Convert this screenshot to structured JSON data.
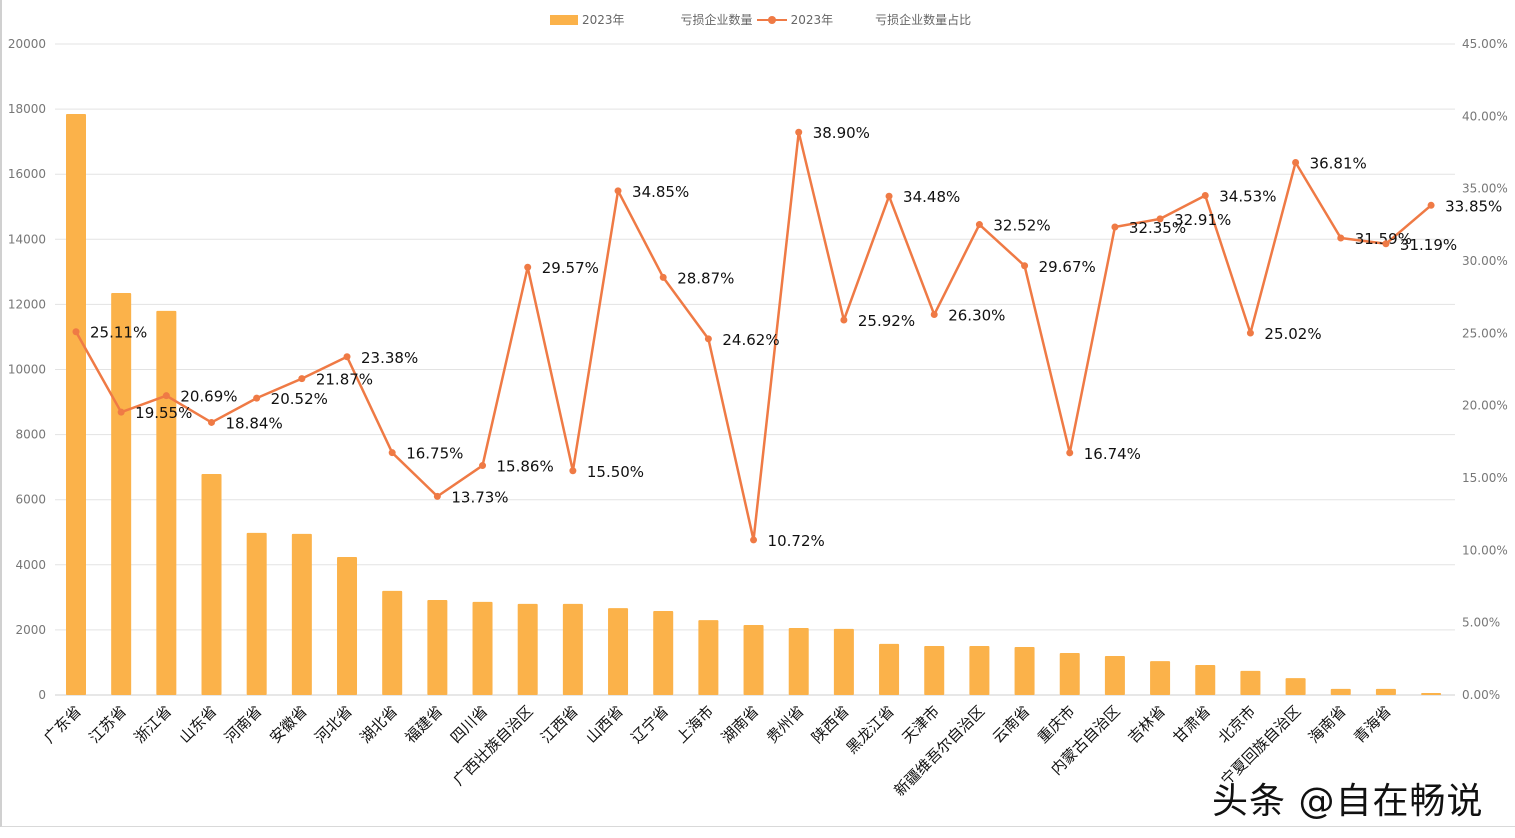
{
  "chart_data": {
    "type": "bar+line",
    "title": "",
    "legend": [
      "2023年 亏损企业数量",
      "2023年 亏损企业数量占比"
    ],
    "legend_position": "top",
    "categories": [
      "广东省",
      "江苏省",
      "浙江省",
      "山东省",
      "河南省",
      "安徽省",
      "河北省",
      "湖北省",
      "福建省",
      "四川省",
      "广西壮族自治区",
      "江西省",
      "山西省",
      "辽宁省",
      "上海市",
      "湖南省",
      "贵州省",
      "陕西省",
      "黑龙江省",
      "天津市",
      "新疆维吾尔自治区",
      "云南省",
      "重庆市",
      "内蒙古自治区",
      "吉林省",
      "甘肃省",
      "北京市",
      "宁夏回族自治区",
      "海南省",
      "青海省",
      ""
    ],
    "series": [
      {
        "name": "2023年 亏损企业数量",
        "type": "bar",
        "axis": "left",
        "color": "#fbb24a",
        "values": [
          17850,
          12350,
          11800,
          6790,
          4980,
          4950,
          4240,
          3200,
          2920,
          2860,
          2800,
          2800,
          2670,
          2580,
          2300,
          2150,
          2060,
          2030,
          1570,
          1505,
          1505,
          1475,
          1290,
          1200,
          1040,
          920,
          740,
          520,
          190,
          190,
          60
        ]
      },
      {
        "name": "2023年 亏损企业数量占比",
        "type": "line",
        "axis": "right",
        "color": "#ef7a45",
        "values": [
          25.11,
          19.55,
          20.69,
          18.84,
          20.52,
          21.87,
          23.38,
          16.75,
          13.73,
          15.86,
          29.57,
          15.5,
          34.85,
          28.87,
          24.62,
          10.72,
          38.9,
          25.92,
          34.48,
          26.3,
          32.52,
          29.67,
          16.74,
          32.35,
          32.91,
          34.53,
          25.02,
          36.81,
          31.59,
          31.19,
          33.85
        ],
        "labels": [
          "25.11%",
          "19.55%",
          "20.69%",
          "18.84%",
          "20.52%",
          "21.87%",
          "23.38%",
          "16.75%",
          "13.73%",
          "15.86%",
          "29.57%",
          "15.50%",
          "34.85%",
          "28.87%",
          "24.62%",
          "10.72%",
          "38.90%",
          "25.92%",
          "34.48%",
          "26.30%",
          "32.52%",
          "29.67%",
          "16.74%",
          "32.35%",
          "32.91%",
          "34.53%",
          "25.02%",
          "36.81%",
          "31.59%",
          "31.19%",
          "33.85%"
        ]
      }
    ],
    "ylim": [
      0,
      20000
    ],
    "yticks": [
      "0",
      "2000",
      "4000",
      "6000",
      "8000",
      "10000",
      "12000",
      "14000",
      "16000",
      "18000",
      "20000"
    ],
    "y2lim": [
      0,
      45
    ],
    "y2ticks": [
      "0.00%",
      "5.00%",
      "10.00%",
      "15.00%",
      "20.00%",
      "25.00%",
      "30.00%",
      "35.00%",
      "40.00%",
      "45.00%"
    ],
    "grid": true
  },
  "legend_text": {
    "bar_year": "2023年",
    "bar_name": "亏损企业数量",
    "line_year": "2023年",
    "line_name": "亏损企业数量占比"
  },
  "watermark": "头条 @自在畅说"
}
